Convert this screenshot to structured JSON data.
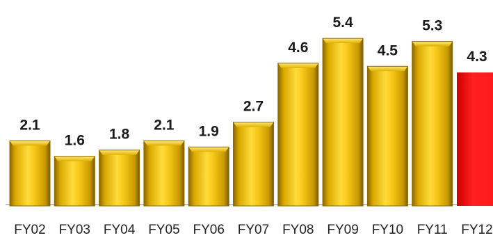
{
  "chart_data": {
    "type": "bar",
    "categories": [
      "FY02",
      "FY03",
      "FY04",
      "FY05",
      "FY06",
      "FY07",
      "FY08",
      "FY09",
      "FY10",
      "FY11",
      "FY12"
    ],
    "values": [
      2.1,
      1.6,
      1.8,
      2.1,
      1.9,
      2.7,
      4.6,
      5.4,
      4.5,
      5.3,
      4.3
    ],
    "value_labels": [
      "2.1",
      "1.6",
      "1.8",
      "2.1",
      "1.9",
      "2.7",
      "4.6",
      "5.4",
      "4.5",
      "5.3",
      "4.3"
    ],
    "highlight_index": 10,
    "title": "",
    "xlabel": "",
    "ylabel": "",
    "ylim": [
      0,
      6
    ],
    "grid": false,
    "legend": "none",
    "colors": {
      "bar": "#f2c010",
      "bar_light": "#ffe978",
      "bar_dark": "#a27a00",
      "highlight": "#ff1a1a",
      "highlight_light": "#ff6a6a",
      "highlight_dark": "#c40000",
      "axis": "#999999"
    }
  }
}
